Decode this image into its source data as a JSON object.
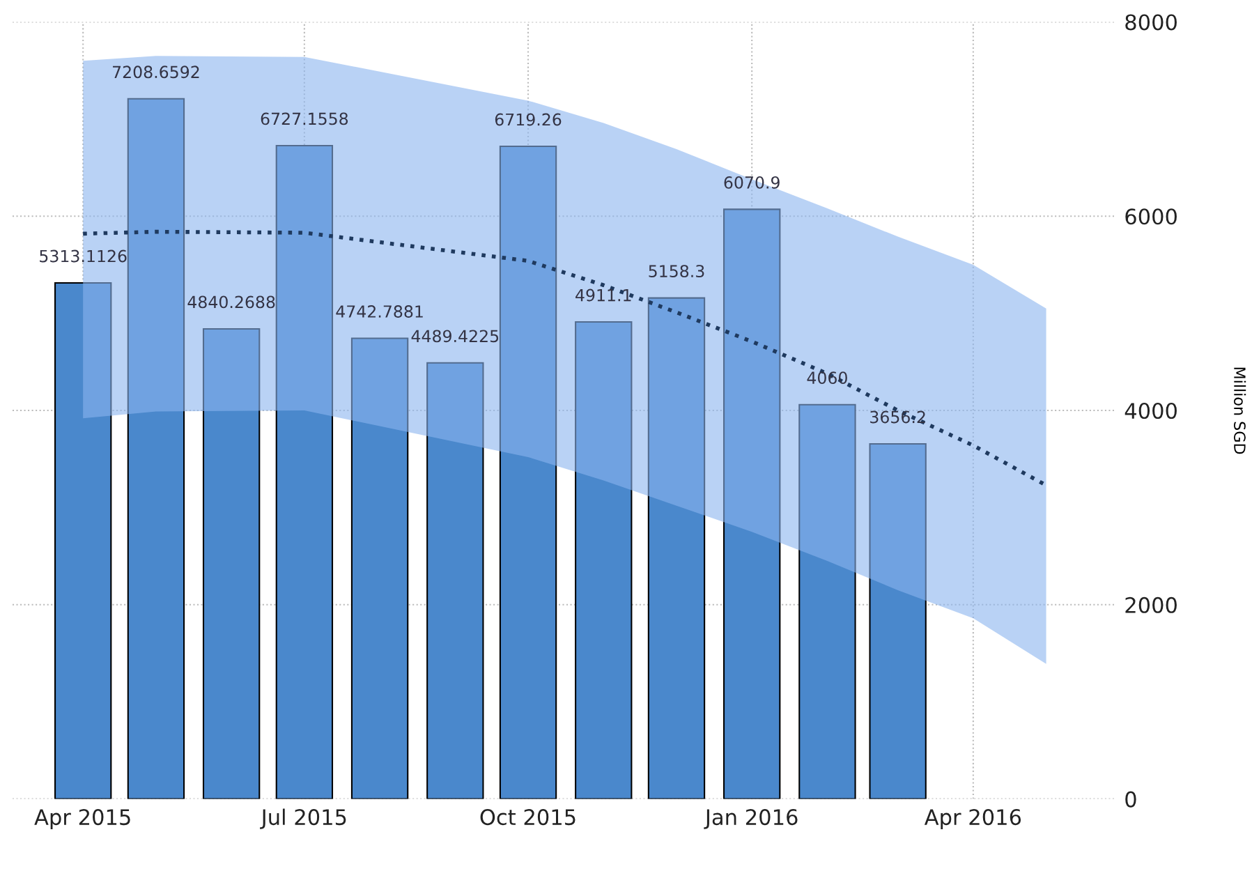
{
  "chart_data": {
    "type": "bar",
    "ylabel": "Million SGD",
    "x": [
      "2015-04",
      "2015-05",
      "2015-06",
      "2015-07",
      "2015-08",
      "2015-09",
      "2015-10",
      "2015-11",
      "2015-12",
      "2016-01",
      "2016-02",
      "2016-03"
    ],
    "series": [
      {
        "color": "#4a88cc",
        "values": [
          5313.1126,
          7208.6592,
          4840.2688,
          6727.1558,
          4742.7881,
          4489.4225,
          6719.26,
          4911.1,
          5158.3,
          6070.9,
          4060,
          3656.2
        ],
        "value_labels": [
          "5313.1126",
          "7208.6592",
          "4840.2688",
          "6727.1558",
          "4742.7881",
          "4489.4225",
          "6719.26",
          "4911.1",
          "5158.3",
          "6070.9",
          "4060",
          "3656.2"
        ]
      },
      {
        "type": "line",
        "color": "#1f3a5f",
        "line_style": "dotted",
        "x": [
          "2015-04",
          "2015-05",
          "2015-07",
          "2015-10",
          "2015-11",
          "2015-12",
          "2016-01",
          "2016-02",
          "2016-03",
          "2016-04",
          "2016-05"
        ],
        "values": [
          5820,
          5840,
          5830,
          5540,
          5290,
          5010,
          4710,
          4380,
          4000,
          3640,
          3230
        ],
        "lower": [
          3920,
          3990,
          4000,
          3520,
          3280,
          3020,
          2750,
          2450,
          2150,
          1860,
          1390
        ],
        "upper": [
          7600,
          7650,
          7640,
          7190,
          6960,
          6690,
          6380,
          6080,
          5790,
          5500,
          5050
        ]
      }
    ],
    "xlim": [
      "2015-03-03",
      "2016-05-29"
    ],
    "xticks": [
      {
        "value": "2015-04",
        "label": "Apr 2015"
      },
      {
        "value": "2015-07",
        "label": "Jul 2015"
      },
      {
        "value": "2015-10",
        "label": "Oct 2015"
      },
      {
        "value": "2016-01",
        "label": "Jan 2016"
      },
      {
        "value": "2016-04",
        "label": "Apr 2016"
      }
    ],
    "ylim": [
      0,
      8000
    ],
    "yticks": [
      0,
      2000,
      4000,
      6000,
      8000
    ],
    "grid": true,
    "legend": false
  }
}
